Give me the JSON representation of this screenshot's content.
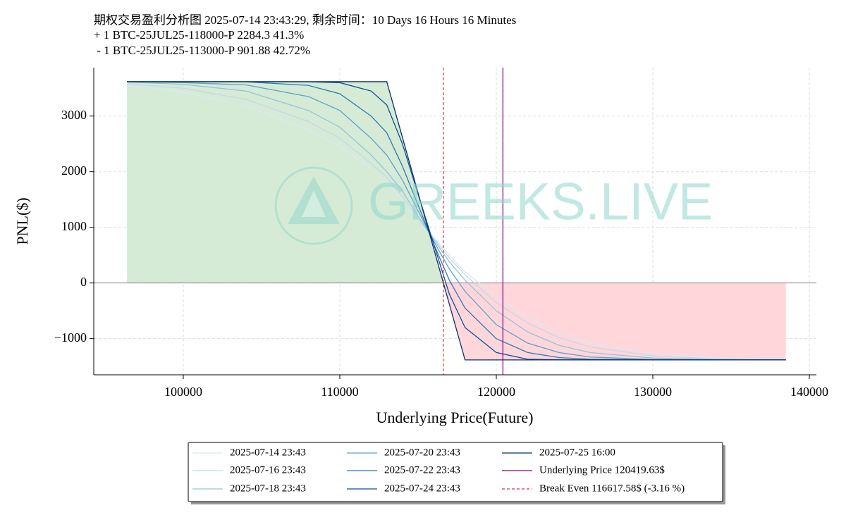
{
  "chart_data": {
    "type": "line",
    "title": [
      "期权交易盈利分析图 2025-07-14 23:43:29, 剩余时间：10 Days 16 Hours 16 Minutes",
      "+ 1 BTC-25JUL25-118000-P 2284.3 41.3%",
      " - 1 BTC-25JUL25-113000-P 901.88 42.72%"
    ],
    "xlabel": "Underlying Price(Future)",
    "ylabel": "PNL($)",
    "watermark": "GREEKS.LIVE",
    "x": [
      96400,
      100000,
      104000,
      108000,
      110000,
      112000,
      113000,
      114000,
      115000,
      116000,
      117000,
      118000,
      120000,
      122000,
      124000,
      126000,
      130000,
      134000,
      138500
    ],
    "series": [
      {
        "name": "2025-07-14 23:43",
        "color": "#dbe8f4",
        "values": [
          3550,
          3430,
          3180,
          2750,
          2450,
          2050,
          1800,
          1500,
          1150,
          820,
          500,
          200,
          -250,
          -620,
          -880,
          -1070,
          -1270,
          -1350,
          -1375
        ]
      },
      {
        "name": "2025-07-16 23:43",
        "color": "#c3d9ec",
        "values": [
          3580,
          3500,
          3300,
          2900,
          2600,
          2150,
          1900,
          1550,
          1150,
          800,
          450,
          150,
          -350,
          -720,
          -980,
          -1150,
          -1310,
          -1365,
          -1378
        ]
      },
      {
        "name": "2025-07-18 23:43",
        "color": "#93c3de",
        "values": [
          3610,
          3570,
          3450,
          3100,
          2800,
          2300,
          2000,
          1650,
          1200,
          780,
          380,
          50,
          -500,
          -880,
          -1120,
          -1250,
          -1350,
          -1375,
          -1381
        ]
      },
      {
        "name": "2025-07-20 23:43",
        "color": "#5ba0cf",
        "values": [
          3617,
          3600,
          3560,
          3350,
          3100,
          2600,
          2300,
          1850,
          1300,
          750,
          250,
          -150,
          -750,
          -1080,
          -1250,
          -1330,
          -1375,
          -1381,
          -1382
        ]
      },
      {
        "name": "2025-07-22 23:43",
        "color": "#2d78b6",
        "values": [
          3617,
          3617,
          3615,
          3550,
          3400,
          3000,
          2700,
          2100,
          1400,
          700,
          50,
          -450,
          -1000,
          -1250,
          -1340,
          -1370,
          -1380,
          -1382,
          -1382
        ]
      },
      {
        "name": "2025-07-24 23:43",
        "color": "#0e4f97",
        "values": [
          3617,
          3617,
          3617,
          3615,
          3600,
          3450,
          3200,
          2500,
          1600,
          700,
          -200,
          -800,
          -1250,
          -1370,
          -1380,
          -1382,
          -1382,
          -1382,
          -1382
        ]
      },
      {
        "name": "2025-07-25 16:00",
        "color": "#08306b",
        "values": [
          3617.58,
          3617.58,
          3617.58,
          3617.58,
          3617.58,
          3617.58,
          3617.58,
          2617.58,
          1617.58,
          617.58,
          -382.42,
          -1382.42,
          -1382.42,
          -1382.42,
          -1382.42,
          -1382.42,
          -1382.42,
          -1382.42,
          -1382.42
        ]
      }
    ],
    "fill_colors": {
      "profit": "#d6ebd5",
      "loss": "#ffd6da"
    },
    "vlines": [
      {
        "name": "Underlying Price 120419.63$",
        "value": 120419.63,
        "color": "#800080",
        "dashed": false
      },
      {
        "name": "Break Even 116617.58$ (-3.16 %)",
        "value": 116617.58,
        "color": "#e03030",
        "dashed": true
      }
    ],
    "xlim": [
      94280,
      140450
    ],
    "ylim": [
      -1650,
      3870
    ],
    "xticks": [
      100000,
      110000,
      120000,
      130000,
      140000
    ],
    "yticks": [
      {
        "value": -1000,
        "label": "−1000"
      },
      0,
      1000,
      2000,
      3000
    ],
    "grid": true
  }
}
